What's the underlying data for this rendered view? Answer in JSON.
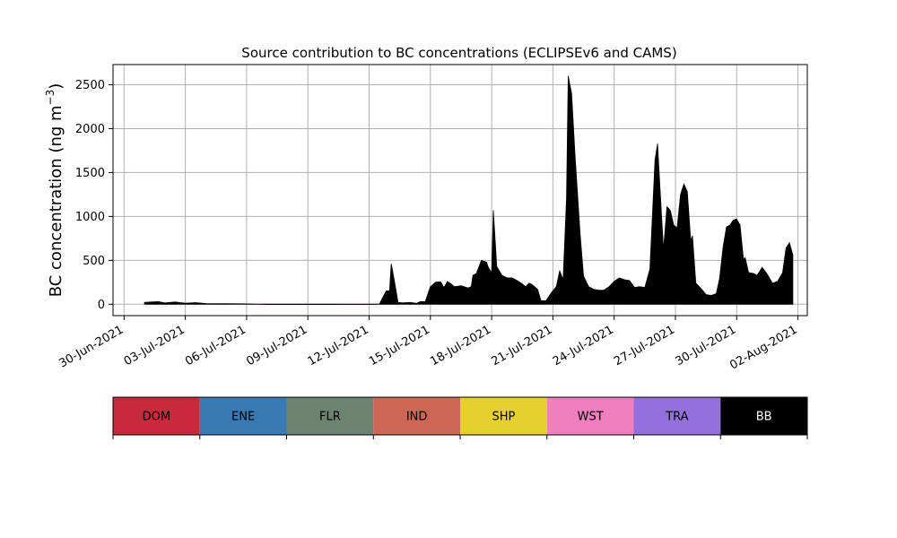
{
  "chart_data": {
    "type": "area",
    "title": "Source contribution to BC concentrations (ECLIPSEv6 and CAMS)",
    "ylabel": "BC concentration (ng m",
    "ylabel_sup": "−3",
    "ylabel_close": ")",
    "xlabel": "",
    "x_axis_type": "date",
    "xlim": [
      "2021-06-29T11:00",
      "2021-08-02T11:00"
    ],
    "ylim": [
      -130,
      2730
    ],
    "grid": true,
    "x_ticks": [
      {
        "date": "2021-06-30",
        "label": "30-Jun-2021"
      },
      {
        "date": "2021-07-03",
        "label": "03-Jul-2021"
      },
      {
        "date": "2021-07-06",
        "label": "06-Jul-2021"
      },
      {
        "date": "2021-07-09",
        "label": "09-Jul-2021"
      },
      {
        "date": "2021-07-12",
        "label": "12-Jul-2021"
      },
      {
        "date": "2021-07-15",
        "label": "15-Jul-2021"
      },
      {
        "date": "2021-07-18",
        "label": "18-Jul-2021"
      },
      {
        "date": "2021-07-21",
        "label": "21-Jul-2021"
      },
      {
        "date": "2021-07-24",
        "label": "24-Jul-2021"
      },
      {
        "date": "2021-07-27",
        "label": "27-Jul-2021"
      },
      {
        "date": "2021-07-30",
        "label": "30-Jul-2021"
      },
      {
        "date": "2021-08-02",
        "label": "02-Aug-2021"
      }
    ],
    "y_ticks": [
      0,
      500,
      1000,
      1500,
      2000,
      2500
    ],
    "series": [
      {
        "name": "DOM",
        "color": "#c72a3a",
        "points": [
          [
            "2021-07-01T00:00",
            3
          ],
          [
            "2021-08-01T18:00",
            3
          ]
        ]
      },
      {
        "name": "ENE",
        "color": "#3a7ab4",
        "points": [
          [
            "2021-07-01T00:00",
            1
          ],
          [
            "2021-08-01T18:00",
            1
          ]
        ]
      },
      {
        "name": "FLR",
        "color": "#6d8371",
        "points": [
          [
            "2021-07-01T00:00",
            1
          ],
          [
            "2021-08-01T18:00",
            1
          ]
        ]
      },
      {
        "name": "IND",
        "color": "#cc6655",
        "points": [
          [
            "2021-07-01T00:00",
            2
          ],
          [
            "2021-08-01T18:00",
            2
          ]
        ]
      },
      {
        "name": "SHP",
        "color": "#e6d02f",
        "points": [
          [
            "2021-07-01T00:00",
            1
          ],
          [
            "2021-08-01T18:00",
            1
          ]
        ]
      },
      {
        "name": "WST",
        "color": "#f07fbf",
        "points": [
          [
            "2021-07-01T00:00",
            2
          ],
          [
            "2021-08-01T18:00",
            2
          ]
        ]
      },
      {
        "name": "TRA",
        "color": "#9370db",
        "points": [
          [
            "2021-07-01T00:00",
            3
          ],
          [
            "2021-08-01T18:00",
            3
          ]
        ]
      },
      {
        "name": "BB",
        "color": "#000000",
        "points": [
          [
            "2021-07-01T00:00",
            20
          ],
          [
            "2021-07-01T08:00",
            25
          ],
          [
            "2021-07-01T16:00",
            30
          ],
          [
            "2021-07-02T00:00",
            15
          ],
          [
            "2021-07-02T12:00",
            25
          ],
          [
            "2021-07-03T00:00",
            12
          ],
          [
            "2021-07-03T12:00",
            18
          ],
          [
            "2021-07-04T00:00",
            8
          ],
          [
            "2021-07-05T00:00",
            6
          ],
          [
            "2021-07-06T00:00",
            4
          ],
          [
            "2021-07-07T00:00",
            -3
          ],
          [
            "2021-07-08T00:00",
            -4
          ],
          [
            "2021-07-09T00:00",
            -3
          ],
          [
            "2021-07-10T00:00",
            -3
          ],
          [
            "2021-07-11T00:00",
            -2
          ],
          [
            "2021-07-12T00:00",
            -2
          ],
          [
            "2021-07-12T12:00",
            0
          ],
          [
            "2021-07-12T20:00",
            150
          ],
          [
            "2021-07-13T00:00",
            155
          ],
          [
            "2021-07-13T02:00",
            460
          ],
          [
            "2021-07-13T06:00",
            250
          ],
          [
            "2021-07-13T10:00",
            20
          ],
          [
            "2021-07-13T16:00",
            15
          ],
          [
            "2021-07-14T00:00",
            20
          ],
          [
            "2021-07-14T08:00",
            10
          ],
          [
            "2021-07-14T12:00",
            30
          ],
          [
            "2021-07-14T18:00",
            30
          ],
          [
            "2021-07-15T00:00",
            200
          ],
          [
            "2021-07-15T06:00",
            250
          ],
          [
            "2021-07-15T12:00",
            255
          ],
          [
            "2021-07-15T16:00",
            190
          ],
          [
            "2021-07-15T20:00",
            260
          ],
          [
            "2021-07-16T00:00",
            235
          ],
          [
            "2021-07-16T04:00",
            200
          ],
          [
            "2021-07-16T12:00",
            210
          ],
          [
            "2021-07-16T20:00",
            185
          ],
          [
            "2021-07-17T00:00",
            200
          ],
          [
            "2021-07-17T02:00",
            330
          ],
          [
            "2021-07-17T06:00",
            350
          ],
          [
            "2021-07-17T12:00",
            500
          ],
          [
            "2021-07-17T18:00",
            480
          ],
          [
            "2021-07-17T20:00",
            420
          ],
          [
            "2021-07-18T00:00",
            360
          ],
          [
            "2021-07-18T02:00",
            1070
          ],
          [
            "2021-07-18T06:00",
            430
          ],
          [
            "2021-07-18T12:00",
            330
          ],
          [
            "2021-07-18T18:00",
            300
          ],
          [
            "2021-07-19T00:00",
            300
          ],
          [
            "2021-07-19T06:00",
            270
          ],
          [
            "2021-07-19T12:00",
            230
          ],
          [
            "2021-07-19T16:00",
            200
          ],
          [
            "2021-07-19T20:00",
            240
          ],
          [
            "2021-07-20T00:00",
            220
          ],
          [
            "2021-07-20T06:00",
            170
          ],
          [
            "2021-07-20T10:00",
            40
          ],
          [
            "2021-07-20T16:00",
            40
          ],
          [
            "2021-07-20T22:00",
            130
          ],
          [
            "2021-07-21T04:00",
            200
          ],
          [
            "2021-07-21T08:00",
            380
          ],
          [
            "2021-07-21T12:00",
            280
          ],
          [
            "2021-07-21T16:00",
            1200
          ],
          [
            "2021-07-21T18:00",
            2600
          ],
          [
            "2021-07-21T22:00",
            2400
          ],
          [
            "2021-07-22T02:00",
            1700
          ],
          [
            "2021-07-22T08:00",
            800
          ],
          [
            "2021-07-22T12:00",
            320
          ],
          [
            "2021-07-22T18:00",
            200
          ],
          [
            "2021-07-23T00:00",
            170
          ],
          [
            "2021-07-23T06:00",
            160
          ],
          [
            "2021-07-23T12:00",
            160
          ],
          [
            "2021-07-23T18:00",
            200
          ],
          [
            "2021-07-24T00:00",
            260
          ],
          [
            "2021-07-24T06:00",
            300
          ],
          [
            "2021-07-24T12:00",
            280
          ],
          [
            "2021-07-24T18:00",
            270
          ],
          [
            "2021-07-25T00:00",
            190
          ],
          [
            "2021-07-25T06:00",
            200
          ],
          [
            "2021-07-25T12:00",
            190
          ],
          [
            "2021-07-25T18:00",
            400
          ],
          [
            "2021-07-26T00:00",
            1640
          ],
          [
            "2021-07-26T03:00",
            1830
          ],
          [
            "2021-07-26T06:00",
            1300
          ],
          [
            "2021-07-26T10:00",
            620
          ],
          [
            "2021-07-26T14:00",
            1110
          ],
          [
            "2021-07-26T18:00",
            1070
          ],
          [
            "2021-07-26T22:00",
            900
          ],
          [
            "2021-07-27T02:00",
            870
          ],
          [
            "2021-07-27T06:00",
            1250
          ],
          [
            "2021-07-27T10:00",
            1370
          ],
          [
            "2021-07-27T14:00",
            1280
          ],
          [
            "2021-07-27T18:00",
            720
          ],
          [
            "2021-07-27T20:00",
            780
          ],
          [
            "2021-07-28T00:00",
            240
          ],
          [
            "2021-07-28T06:00",
            180
          ],
          [
            "2021-07-28T12:00",
            110
          ],
          [
            "2021-07-28T18:00",
            100
          ],
          [
            "2021-07-29T00:00",
            120
          ],
          [
            "2021-07-29T04:00",
            300
          ],
          [
            "2021-07-29T08:00",
            650
          ],
          [
            "2021-07-29T12:00",
            880
          ],
          [
            "2021-07-29T16:00",
            900
          ],
          [
            "2021-07-29T20:00",
            960
          ],
          [
            "2021-07-30T00:00",
            970
          ],
          [
            "2021-07-30T04:00",
            900
          ],
          [
            "2021-07-30T08:00",
            510
          ],
          [
            "2021-07-30T10:00",
            530
          ],
          [
            "2021-07-30T14:00",
            360
          ],
          [
            "2021-07-30T20:00",
            350
          ],
          [
            "2021-07-31T00:00",
            330
          ],
          [
            "2021-07-31T06:00",
            420
          ],
          [
            "2021-07-31T12:00",
            340
          ],
          [
            "2021-07-31T18:00",
            240
          ],
          [
            "2021-08-01T00:00",
            260
          ],
          [
            "2021-08-01T06:00",
            360
          ],
          [
            "2021-08-01T10:00",
            640
          ],
          [
            "2021-08-01T14:00",
            700
          ],
          [
            "2021-08-01T18:00",
            560
          ]
        ]
      }
    ],
    "legend_placement": "bottom"
  },
  "legend_items": [
    {
      "label": "DOM",
      "color": "#c72a3a",
      "text_color": "#000000"
    },
    {
      "label": "ENE",
      "color": "#3a7ab4",
      "text_color": "#000000"
    },
    {
      "label": "FLR",
      "color": "#6d8371",
      "text_color": "#000000"
    },
    {
      "label": "IND",
      "color": "#cc6655",
      "text_color": "#000000"
    },
    {
      "label": "SHP",
      "color": "#e6d02f",
      "text_color": "#000000"
    },
    {
      "label": "WST",
      "color": "#f07fbf",
      "text_color": "#000000"
    },
    {
      "label": "TRA",
      "color": "#9370db",
      "text_color": "#000000"
    },
    {
      "label": "BB",
      "color": "#000000",
      "text_color": "#ffffff"
    }
  ]
}
